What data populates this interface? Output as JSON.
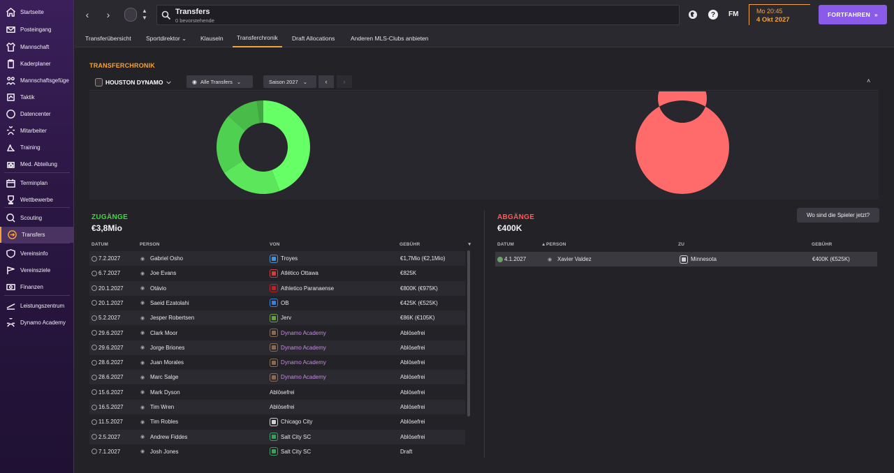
{
  "sidebar": {
    "items": [
      {
        "label": "Startseite",
        "icon": "home-icon"
      },
      {
        "label": "Posteingang",
        "icon": "inbox-icon"
      },
      {
        "label": "Mannschaft",
        "icon": "shirt-icon"
      },
      {
        "label": "Kaderplaner",
        "icon": "clipboard-icon"
      },
      {
        "label": "Mannschaftsgefüge",
        "icon": "people-icon"
      },
      {
        "label": "Taktik",
        "icon": "tactics-icon"
      },
      {
        "label": "Datencenter",
        "icon": "data-icon"
      },
      {
        "label": "Mitarbeiter",
        "icon": "staff-icon"
      },
      {
        "label": "Training",
        "icon": "training-icon"
      },
      {
        "label": "Med. Abteilung",
        "icon": "medical-icon"
      },
      {
        "label": "Terminplan",
        "icon": "calendar-icon"
      },
      {
        "label": "Wettbewerbe",
        "icon": "trophy-icon"
      },
      {
        "label": "Scouting",
        "icon": "scouting-icon"
      },
      {
        "label": "Transfers",
        "icon": "transfers-icon"
      },
      {
        "label": "Vereinsinfo",
        "icon": "shield-icon"
      },
      {
        "label": "Vereinsziele",
        "icon": "goals-icon"
      },
      {
        "label": "Finanzen",
        "icon": "finance-icon"
      },
      {
        "label": "Leistungszentrum",
        "icon": "development-icon"
      },
      {
        "label": "Dynamo Academy",
        "icon": "academy-icon"
      }
    ],
    "active_index": 13,
    "accent": "#f6a23b"
  },
  "topbar": {
    "search_title": "Transfers",
    "search_sub": "0 bevorstehende",
    "fm_logo": "FM",
    "date_line1": "Mo 20:45",
    "date_line2": "4 Okt 2027",
    "continue_label": "FORTFAHREN",
    "continue_color": "#8a5ae8"
  },
  "tabs": [
    {
      "label": "Transferübersicht"
    },
    {
      "label": "Sportdirektor ⌄"
    },
    {
      "label": "Klauseln"
    },
    {
      "label": "Transferchronik"
    },
    {
      "label": "Draft Allocations"
    },
    {
      "label": "Anderen MLS-Clubs anbieten"
    }
  ],
  "active_tab": 3,
  "panel": {
    "title": "TRANSFERCHRONIK",
    "club": "HOUSTON DYNAMO",
    "filter": "Alle Transfers",
    "season": "Saison 2027",
    "where_button": "Wo sind die Spieler jetzt?"
  },
  "incoming": {
    "label": "ZUGÄNGE",
    "label_color": "#47d447",
    "total": "€3,8Mio",
    "headers": {
      "date": "DATUM",
      "person": "PERSON",
      "from": "VON",
      "fee": "GEBÜHR"
    },
    "rows": [
      {
        "date": "7.2.2027",
        "person": "Gabriel Osho",
        "club": "Troyes",
        "club_color": "#4a8fd0",
        "fee": "€1,7Mio (€2,1Mio)"
      },
      {
        "date": "6.7.2027",
        "person": "Joe Evans",
        "club": "Atlético Ottawa",
        "club_color": "#d04040",
        "fee": "€825K"
      },
      {
        "date": "20.1.2027",
        "person": "Otávio",
        "club": "Athletico Paranaense",
        "club_color": "#c02020",
        "fee": "€800K (€975K)"
      },
      {
        "date": "20.1.2027",
        "person": "Saeid Ezatolahi",
        "club": "OB",
        "club_color": "#3a7fd8",
        "fee": "€425K (€525K)"
      },
      {
        "date": "5.2.2027",
        "person": "Jesper Robertsen",
        "club": "Jerv",
        "club_color": "#6aa040",
        "fee": "€86K (€105K)"
      },
      {
        "date": "29.6.2027",
        "person": "Clark Moor",
        "club": "Dynamo Academy",
        "club_color": "#8a6a50",
        "fee": "Ablösefrei",
        "academy": true
      },
      {
        "date": "29.6.2027",
        "person": "Jorge Briones",
        "club": "Dynamo Academy",
        "club_color": "#8a6a50",
        "fee": "Ablösefrei",
        "academy": true
      },
      {
        "date": "28.6.2027",
        "person": "Juan Morales",
        "club": "Dynamo Academy",
        "club_color": "#8a6a50",
        "fee": "Ablösefrei",
        "academy": true
      },
      {
        "date": "28.6.2027",
        "person": "Marc Salge",
        "club": "Dynamo Academy",
        "club_color": "#8a6a50",
        "fee": "Ablösefrei",
        "academy": true
      },
      {
        "date": "15.6.2027",
        "person": "Mark Dyson",
        "club": "Ablösefrei",
        "club_color": "",
        "fee": "Ablösefrei"
      },
      {
        "date": "16.5.2027",
        "person": "Tim Wren",
        "club": "Ablösefrei",
        "club_color": "",
        "fee": "Ablösefrei"
      },
      {
        "date": "11.5.2027",
        "person": "Tim Robles",
        "club": "Chicago City",
        "club_color": "#d0d0d0",
        "fee": "Ablösefrei"
      },
      {
        "date": "2.5.2027",
        "person": "Andrew Fiddes",
        "club": "Salt City SC",
        "club_color": "#3aa060",
        "fee": "Ablösefrei"
      },
      {
        "date": "7.1.2027",
        "person": "Josh Jones",
        "club": "Salt City SC",
        "club_color": "#3aa060",
        "fee": "Draft"
      }
    ]
  },
  "outgoing": {
    "label": "ABGÄNGE",
    "label_color": "#ff5a5a",
    "total": "€400K",
    "headers": {
      "date": "DATUM",
      "person": "PERSON",
      "to": "ZU",
      "fee": "GEBÜHR"
    },
    "rows": [
      {
        "date": "4.1.2027",
        "person": "Xavier Valdez",
        "club": "Minnesota",
        "fee": "€400K (€525K)"
      }
    ]
  },
  "chart_data": [
    {
      "type": "pie",
      "subtype": "donut",
      "labels": [
        "Gabriel Osho",
        "Joe Evans",
        "Otávio",
        "Saeid Ezatolahi",
        "Jesper Robertsen"
      ],
      "values": [
        1.7,
        0.825,
        0.8,
        0.425,
        0.086
      ],
      "colors": [
        "#66ff66",
        "#5ce65c",
        "#50d050",
        "#48bb48",
        "#40a840"
      ]
    },
    {
      "type": "pie",
      "subtype": "donut",
      "labels": [
        "Xavier Valdez"
      ],
      "values": [
        0.4
      ],
      "colors": [
        "#ff6a6a"
      ]
    }
  ]
}
